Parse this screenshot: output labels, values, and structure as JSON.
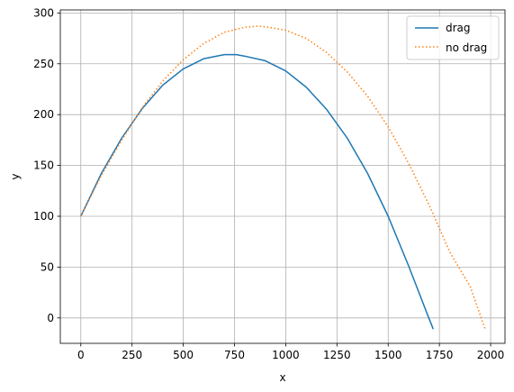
{
  "chart_data": {
    "type": "line",
    "title": "",
    "xlabel": "x",
    "ylabel": "y",
    "xlim": [
      -100,
      2070
    ],
    "ylim": [
      -25,
      303
    ],
    "xticks": [
      0,
      250,
      500,
      750,
      1000,
      1250,
      1500,
      1750,
      2000
    ],
    "yticks": [
      0,
      50,
      100,
      150,
      200,
      250,
      300
    ],
    "grid": true,
    "legend": "top-right",
    "series": [
      {
        "name": "drag",
        "color": "#1f77b4",
        "style": "solid",
        "x": [
          0,
          100,
          200,
          300,
          400,
          500,
          600,
          700,
          760,
          800,
          900,
          1000,
          1100,
          1200,
          1300,
          1400,
          1500,
          1600,
          1700,
          1720
        ],
        "y": [
          100,
          142,
          177,
          206,
          229,
          245,
          255,
          259,
          259,
          257.5,
          253,
          243,
          227,
          205,
          177,
          142,
          100,
          51,
          -1,
          -11
        ]
      },
      {
        "name": "no drag",
        "color": "#ff7f0e",
        "style": "dotted",
        "x": [
          0,
          100,
          200,
          300,
          400,
          500,
          600,
          700,
          800,
          870,
          900,
          1000,
          1100,
          1200,
          1300,
          1400,
          1500,
          1600,
          1700,
          1800,
          1900,
          1975
        ],
        "y": [
          100,
          140,
          175,
          207,
          233,
          254,
          270,
          281,
          286,
          287,
          286.5,
          283,
          275,
          261,
          242,
          218,
          188,
          152,
          111,
          65,
          31,
          -12
        ]
      }
    ]
  }
}
